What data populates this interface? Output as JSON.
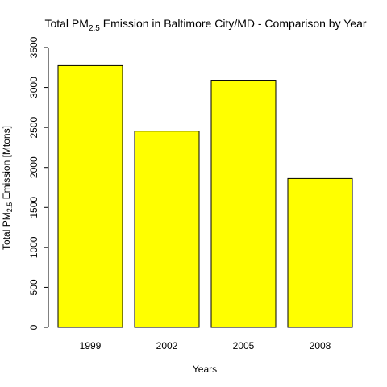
{
  "chart_data": {
    "type": "bar",
    "title": {
      "before": "Total PM",
      "sub": "2.5",
      "after": " Emission in Baltimore City/MD - Comparison by Year"
    },
    "xlabel": "Years",
    "ylabel": {
      "before": "Total PM",
      "sub": "2.5",
      "after": " Emission [Mtons]"
    },
    "categories": [
      "1999",
      "2002",
      "2005",
      "2008"
    ],
    "values": [
      3274,
      2454,
      3091,
      1862
    ],
    "ylim": [
      0,
      3500
    ],
    "yticks": [
      0,
      500,
      1000,
      1500,
      2000,
      2500,
      3000,
      3500
    ],
    "ytick_labels": [
      "0",
      "500",
      "1000",
      "1500",
      "2000",
      "2500",
      "3000",
      "3500"
    ],
    "bar_color": "#ffff00",
    "bar_border_color": "#000000",
    "grid": false,
    "legend": "none"
  }
}
